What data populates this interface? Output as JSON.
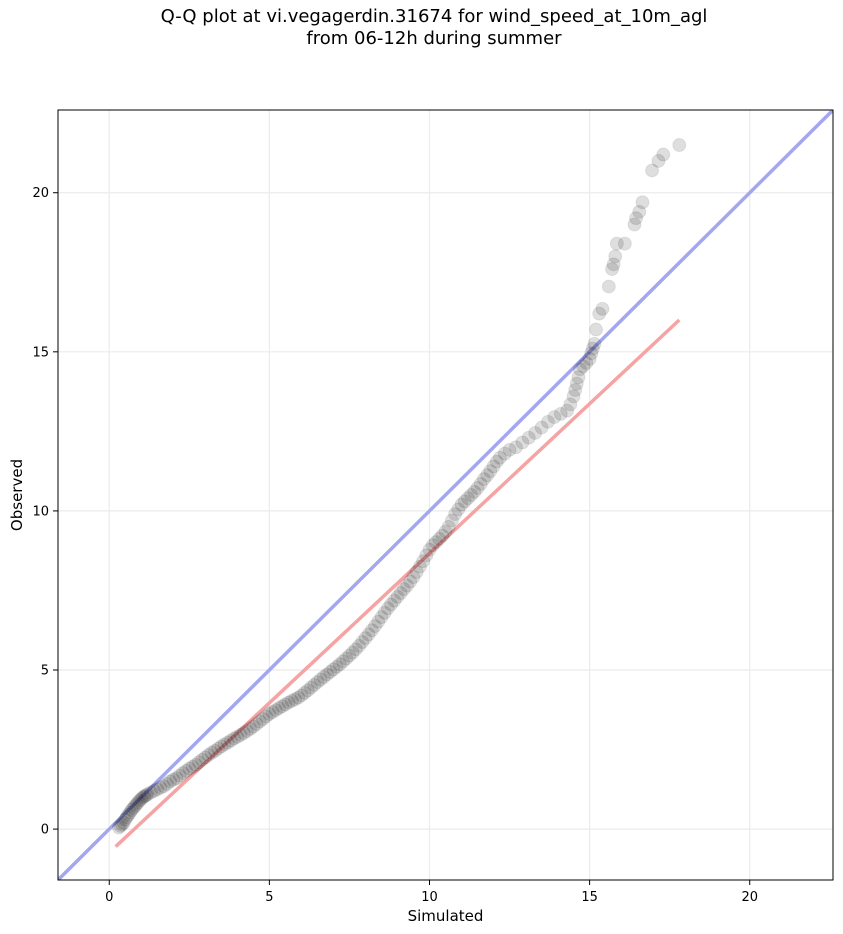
{
  "chart_data": {
    "type": "scatter",
    "title": "Q-Q plot at vi.vegagerdin.31674 for wind_speed_at_10m_agl\nfrom 06-12h during summer",
    "xlabel": "Simulated",
    "ylabel": "Observed",
    "xlim": [
      -1.6,
      22.6
    ],
    "ylim": [
      -1.6,
      22.6
    ],
    "xticks": [
      "0",
      "5",
      "10",
      "15",
      "20"
    ],
    "yticks": [
      "0",
      "5",
      "10",
      "15",
      "20"
    ],
    "grid": true,
    "colors": {
      "points": "#000000",
      "identity_line": "#a3a7f0",
      "fit_line": "#f5a3a3",
      "grid": "#ebebeb"
    },
    "lines": [
      {
        "role": "identity",
        "x": [
          -1.6,
          22.6
        ],
        "y": [
          -1.6,
          22.6
        ]
      },
      {
        "role": "fit",
        "x": [
          0.2,
          17.8
        ],
        "y": [
          -0.55,
          16.0
        ]
      }
    ],
    "points": [
      [
        0.3,
        0.05
      ],
      [
        0.35,
        0.1
      ],
      [
        0.4,
        0.15
      ],
      [
        0.45,
        0.2
      ],
      [
        0.5,
        0.3
      ],
      [
        0.55,
        0.38
      ],
      [
        0.6,
        0.45
      ],
      [
        0.65,
        0.52
      ],
      [
        0.7,
        0.6
      ],
      [
        0.75,
        0.66
      ],
      [
        0.8,
        0.72
      ],
      [
        0.85,
        0.78
      ],
      [
        0.9,
        0.84
      ],
      [
        0.95,
        0.9
      ],
      [
        1.0,
        0.95
      ],
      [
        1.05,
        1.0
      ],
      [
        1.1,
        1.03
      ],
      [
        1.15,
        1.06
      ],
      [
        1.2,
        1.1
      ],
      [
        1.3,
        1.15
      ],
      [
        1.4,
        1.2
      ],
      [
        1.5,
        1.25
      ],
      [
        1.6,
        1.3
      ],
      [
        1.7,
        1.35
      ],
      [
        1.8,
        1.42
      ],
      [
        1.9,
        1.5
      ],
      [
        2.0,
        1.55
      ],
      [
        2.1,
        1.6
      ],
      [
        2.2,
        1.68
      ],
      [
        2.3,
        1.76
      ],
      [
        2.4,
        1.83
      ],
      [
        2.5,
        1.9
      ],
      [
        2.6,
        1.96
      ],
      [
        2.7,
        2.02
      ],
      [
        2.8,
        2.1
      ],
      [
        2.9,
        2.18
      ],
      [
        3.0,
        2.25
      ],
      [
        3.1,
        2.33
      ],
      [
        3.2,
        2.4
      ],
      [
        3.3,
        2.46
      ],
      [
        3.4,
        2.53
      ],
      [
        3.5,
        2.6
      ],
      [
        3.6,
        2.66
      ],
      [
        3.7,
        2.72
      ],
      [
        3.8,
        2.78
      ],
      [
        3.9,
        2.85
      ],
      [
        4.0,
        2.9
      ],
      [
        4.1,
        2.96
      ],
      [
        4.2,
        3.02
      ],
      [
        4.3,
        3.08
      ],
      [
        4.4,
        3.15
      ],
      [
        4.5,
        3.22
      ],
      [
        4.6,
        3.3
      ],
      [
        4.7,
        3.38
      ],
      [
        4.8,
        3.46
      ],
      [
        4.9,
        3.54
      ],
      [
        5.0,
        3.62
      ],
      [
        5.1,
        3.68
      ],
      [
        5.2,
        3.74
      ],
      [
        5.3,
        3.8
      ],
      [
        5.4,
        3.86
      ],
      [
        5.5,
        3.92
      ],
      [
        5.6,
        3.98
      ],
      [
        5.7,
        4.03
      ],
      [
        5.8,
        4.08
      ],
      [
        5.9,
        4.13
      ],
      [
        6.0,
        4.2
      ],
      [
        6.1,
        4.28
      ],
      [
        6.2,
        4.36
      ],
      [
        6.3,
        4.45
      ],
      [
        6.4,
        4.53
      ],
      [
        6.5,
        4.62
      ],
      [
        6.6,
        4.7
      ],
      [
        6.7,
        4.78
      ],
      [
        6.8,
        4.86
      ],
      [
        6.9,
        4.94
      ],
      [
        7.0,
        5.02
      ],
      [
        7.1,
        5.1
      ],
      [
        7.2,
        5.18
      ],
      [
        7.3,
        5.27
      ],
      [
        7.4,
        5.36
      ],
      [
        7.5,
        5.45
      ],
      [
        7.6,
        5.55
      ],
      [
        7.7,
        5.65
      ],
      [
        7.8,
        5.76
      ],
      [
        7.9,
        5.88
      ],
      [
        8.0,
        6.0
      ],
      [
        8.1,
        6.12
      ],
      [
        8.2,
        6.25
      ],
      [
        8.3,
        6.38
      ],
      [
        8.4,
        6.52
      ],
      [
        8.5,
        6.66
      ],
      [
        8.6,
        6.8
      ],
      [
        8.7,
        6.94
      ],
      [
        8.8,
        7.06
      ],
      [
        8.9,
        7.18
      ],
      [
        9.0,
        7.3
      ],
      [
        9.1,
        7.42
      ],
      [
        9.2,
        7.54
      ],
      [
        9.3,
        7.65
      ],
      [
        9.4,
        7.78
      ],
      [
        9.5,
        7.92
      ],
      [
        9.6,
        8.08
      ],
      [
        9.7,
        8.25
      ],
      [
        9.8,
        8.42
      ],
      [
        9.9,
        8.6
      ],
      [
        10.0,
        8.78
      ],
      [
        10.1,
        8.92
      ],
      [
        10.2,
        9.02
      ],
      [
        10.3,
        9.12
      ],
      [
        10.4,
        9.22
      ],
      [
        10.5,
        9.35
      ],
      [
        10.6,
        9.5
      ],
      [
        10.7,
        9.7
      ],
      [
        10.8,
        9.9
      ],
      [
        10.9,
        10.05
      ],
      [
        11.0,
        10.2
      ],
      [
        11.1,
        10.3
      ],
      [
        11.2,
        10.4
      ],
      [
        11.3,
        10.5
      ],
      [
        11.4,
        10.6
      ],
      [
        11.5,
        10.72
      ],
      [
        11.6,
        10.85
      ],
      [
        11.7,
        11.0
      ],
      [
        11.8,
        11.12
      ],
      [
        11.9,
        11.25
      ],
      [
        12.0,
        11.4
      ],
      [
        12.1,
        11.55
      ],
      [
        12.2,
        11.67
      ],
      [
        12.35,
        11.8
      ],
      [
        12.5,
        11.92
      ],
      [
        12.7,
        12.0
      ],
      [
        12.9,
        12.15
      ],
      [
        13.1,
        12.3
      ],
      [
        13.3,
        12.45
      ],
      [
        13.5,
        12.62
      ],
      [
        13.7,
        12.8
      ],
      [
        13.9,
        12.95
      ],
      [
        14.1,
        13.05
      ],
      [
        14.3,
        13.15
      ],
      [
        14.4,
        13.35
      ],
      [
        14.5,
        13.6
      ],
      [
        14.55,
        13.8
      ],
      [
        14.6,
        14.0
      ],
      [
        14.65,
        14.2
      ],
      [
        14.7,
        14.45
      ],
      [
        14.8,
        14.55
      ],
      [
        14.9,
        14.65
      ],
      [
        15.0,
        14.78
      ],
      [
        15.05,
        14.95
      ],
      [
        15.1,
        15.1
      ],
      [
        15.15,
        15.25
      ],
      [
        15.2,
        15.7
      ],
      [
        15.3,
        16.2
      ],
      [
        15.4,
        16.35
      ],
      [
        15.6,
        17.05
      ],
      [
        15.7,
        17.6
      ],
      [
        15.75,
        17.75
      ],
      [
        15.8,
        18.0
      ],
      [
        15.85,
        18.4
      ],
      [
        16.1,
        18.4
      ],
      [
        16.4,
        19.0
      ],
      [
        16.45,
        19.2
      ],
      [
        16.55,
        19.4
      ],
      [
        16.65,
        19.7
      ],
      [
        16.95,
        20.7
      ],
      [
        17.15,
        21.0
      ],
      [
        17.3,
        21.2
      ],
      [
        17.8,
        21.5
      ]
    ]
  }
}
